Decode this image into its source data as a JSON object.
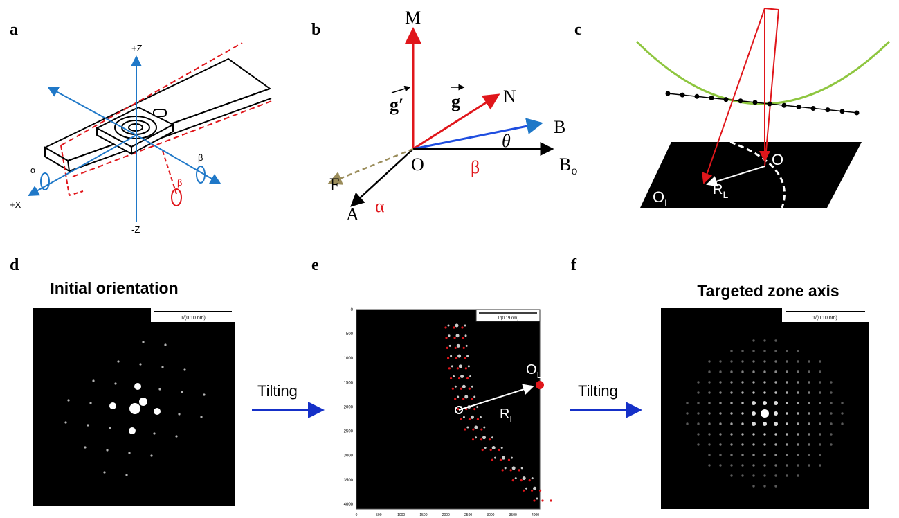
{
  "panel_labels": [
    "a",
    "b",
    "c",
    "d",
    "e",
    "f"
  ],
  "a": {
    "axes": [
      "+Z",
      "-Z",
      "+X"
    ],
    "rotations": [
      "α",
      "β",
      "β"
    ]
  },
  "b": {
    "M": "M",
    "N": "N",
    "B": "B",
    "Bo": {
      "main": "B",
      "sub": "o"
    },
    "O": "O",
    "F": "F",
    "A": "A",
    "alpha": "α",
    "beta": "β",
    "theta": "θ",
    "g": "g",
    "g_prime": "g′"
  },
  "c": {
    "O": "O",
    "OL": {
      "main": "O",
      "sub": "L"
    },
    "RL": {
      "main": "R",
      "sub": "L"
    }
  },
  "d": {
    "title": "Initial orientation",
    "scale": "1/(0.10 nm)"
  },
  "e": {
    "scale": "1/(0.19 nm)",
    "yticks": [
      0,
      500,
      1000,
      1500,
      2000,
      2500,
      3000,
      3500,
      4000
    ],
    "xticks": [
      0,
      500,
      1000,
      1500,
      2000,
      2500,
      3000,
      3500,
      4000
    ],
    "OL": {
      "main": "O",
      "sub": "L"
    },
    "RL": {
      "main": "R",
      "sub": "L"
    }
  },
  "f": {
    "title": "Targeted zone axis",
    "scale": "1/(0.10 nm)"
  },
  "tilting": [
    "Tilting",
    "Tilting"
  ]
}
